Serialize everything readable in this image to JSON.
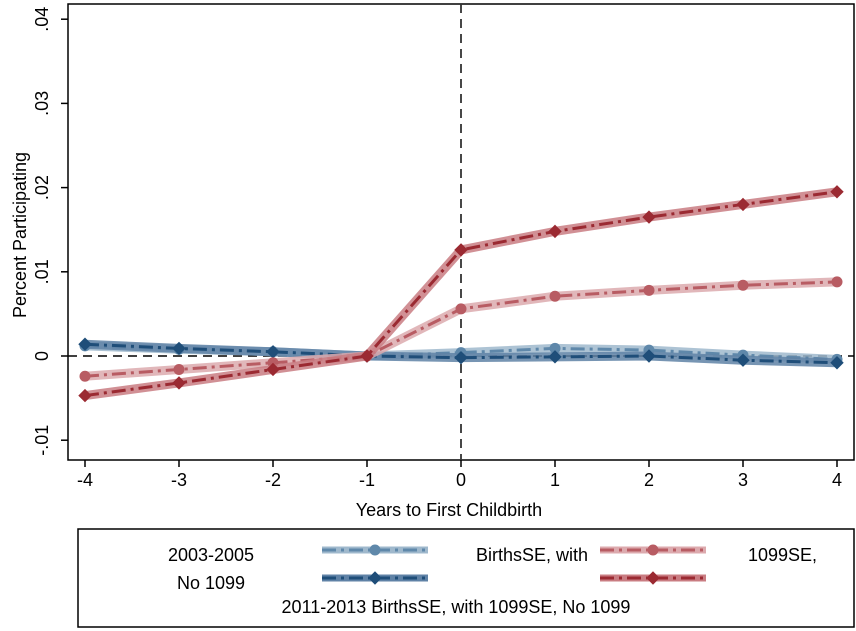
{
  "chart_data": {
    "type": "line",
    "title": "",
    "xlabel": "Years to First Childbirth",
    "ylabel": "Percent Participating",
    "x": [
      -4,
      -3,
      -2,
      -1,
      0,
      1,
      2,
      3,
      4
    ],
    "xlim": [
      -4,
      4
    ],
    "ylim": [
      -0.012,
      0.041
    ],
    "xticks": [
      -4,
      -3,
      -2,
      -1,
      0,
      1,
      2,
      3,
      4
    ],
    "xtick_labels": [
      "-4",
      "-3",
      "-2",
      "-1",
      "0",
      "1",
      "2",
      "3",
      "4"
    ],
    "yticks": [
      -0.01,
      0,
      0.01,
      0.02,
      0.03,
      0.04
    ],
    "ytick_labels": [
      ".01",
      "0",
      ".01",
      ".02",
      ".03",
      ".04"
    ],
    "ytick_prefix": [
      "-",
      "",
      "",
      "",
      "",
      ""
    ],
    "event_line_x": 0,
    "reference_line_y": 0,
    "grid": false,
    "legend_position": "bottom",
    "series": [
      {
        "key": "s1",
        "values": [
          0.0012,
          0.0008,
          0.0005,
          0.0,
          0.0004,
          0.0009,
          0.0007,
          0.0001,
          -0.0004
        ],
        "color": "#5f88aa",
        "band_color": "#9fb8cc",
        "marker": "circle",
        "dash": "14 5 3 5"
      },
      {
        "key": "s2",
        "values": [
          0.0014,
          0.0009,
          0.0005,
          0.0,
          -0.0002,
          -0.0001,
          0.0,
          -0.0005,
          -0.0008
        ],
        "color": "#1f4e79",
        "band_color": "#5f82a6",
        "marker": "diamond",
        "dash": "14 5 3 5"
      },
      {
        "key": "s3",
        "values": [
          -0.0024,
          -0.0016,
          -0.0008,
          0.0,
          0.0056,
          0.0071,
          0.0078,
          0.0084,
          0.0088
        ],
        "color": "#b85c63",
        "band_color": "#dcaaae",
        "marker": "circle",
        "dash": "14 5 3 5"
      },
      {
        "key": "s4",
        "values": [
          -0.0047,
          -0.0032,
          -0.0016,
          0.0,
          0.0126,
          0.0148,
          0.0165,
          0.018,
          0.0195
        ],
        "color": "#9b2a32",
        "band_color": "#c97c82",
        "marker": "diamond",
        "dash": "14 5 3 5"
      }
    ],
    "legend": {
      "row1_left_a": "2003-2005",
      "row1_left_b": "No 1099",
      "row1_mid": "BirthsSE, with",
      "row1_right": "1099SE,",
      "row2": "2011-2013 BirthsSE, with 1099SE, No 1099"
    }
  }
}
